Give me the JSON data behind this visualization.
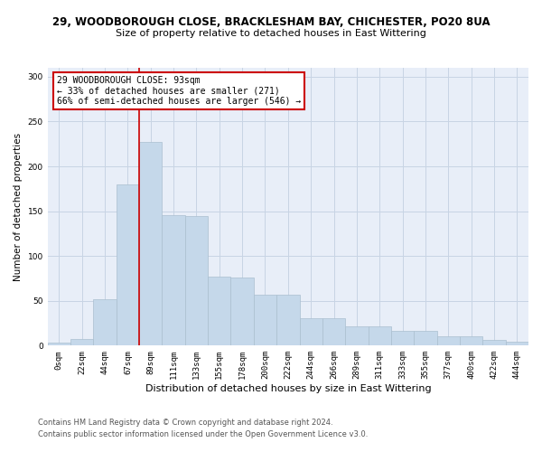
{
  "title_line1": "29, WOODBOROUGH CLOSE, BRACKLESHAM BAY, CHICHESTER, PO20 8UA",
  "title_line2": "Size of property relative to detached houses in East Wittering",
  "xlabel": "Distribution of detached houses by size in East Wittering",
  "ylabel": "Number of detached properties",
  "bar_color": "#c5d8ea",
  "bar_edgecolor": "#aabfcf",
  "bar_values": [
    3,
    7,
    52,
    180,
    227,
    146,
    145,
    77,
    76,
    57,
    57,
    31,
    31,
    22,
    22,
    16,
    16,
    10,
    10,
    6,
    4
  ],
  "x_labels": [
    "0sqm",
    "22sqm",
    "44sqm",
    "67sqm",
    "89sqm",
    "111sqm",
    "133sqm",
    "155sqm",
    "178sqm",
    "200sqm",
    "222sqm",
    "244sqm",
    "266sqm",
    "289sqm",
    "311sqm",
    "333sqm",
    "355sqm",
    "377sqm",
    "400sqm",
    "422sqm",
    "444sqm"
  ],
  "ylim": [
    0,
    310
  ],
  "yticks": [
    0,
    50,
    100,
    150,
    200,
    250,
    300
  ],
  "vline_x": 3.5,
  "annotation_text": "29 WOODBOROUGH CLOSE: 93sqm\n← 33% of detached houses are smaller (271)\n66% of semi-detached houses are larger (546) →",
  "annotation_box_color": "#ffffff",
  "annotation_box_edgecolor": "#cc0000",
  "vline_color": "#cc0000",
  "grid_color": "#c8d4e4",
  "background_color": "#e8eef8",
  "footer_line1": "Contains HM Land Registry data © Crown copyright and database right 2024.",
  "footer_line2": "Contains public sector information licensed under the Open Government Licence v3.0.",
  "title1_fontsize": 8.5,
  "title2_fontsize": 8.0,
  "ylabel_fontsize": 7.5,
  "xlabel_fontsize": 8.0,
  "tick_fontsize": 6.5,
  "annotation_fontsize": 7.0,
  "footer_fontsize": 6.0
}
